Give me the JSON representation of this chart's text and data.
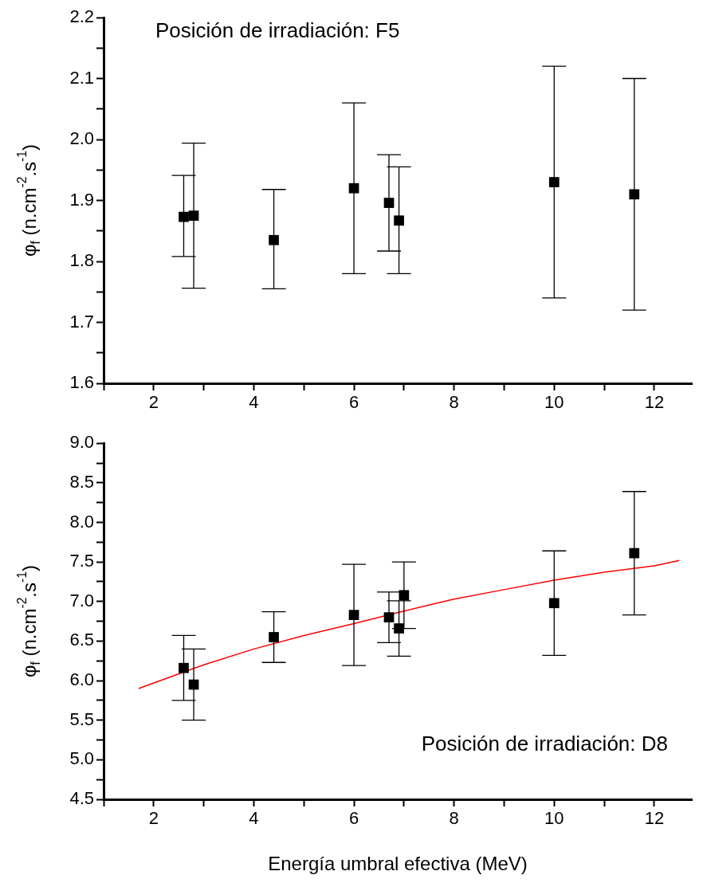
{
  "chart_data": [
    {
      "type": "scatter",
      "ylabel": "φ$_{f}$ (n.cm$^{-2}$.s$^{-1}$)",
      "annotations": [
        "Posición de irradiación: F5"
      ],
      "xlim": [
        1,
        12.75
      ],
      "xticks": [
        {
          "value": 1,
          "label": null
        },
        2,
        {
          "value": 3,
          "label": null
        },
        4,
        {
          "value": 5,
          "label": null
        },
        6,
        {
          "value": 7,
          "label": null
        },
        8,
        {
          "value": 9,
          "label": null
        },
        10,
        {
          "value": 11,
          "label": null
        },
        12
      ],
      "ylim": [
        1.6,
        2.2
      ],
      "yticks": [
        1.6,
        {
          "value": 1.65,
          "label": null
        },
        1.7,
        {
          "value": 1.75,
          "label": null
        },
        1.8,
        {
          "value": 1.85,
          "label": null
        },
        1.9,
        {
          "value": 1.95,
          "label": null
        },
        {
          "value": 2.0,
          "label": "2.0"
        },
        {
          "value": 2.05,
          "label": null
        },
        2.1,
        {
          "value": 2.15,
          "label": null
        },
        2.2
      ],
      "grid": false,
      "legend": false,
      "marker": "square",
      "series": [
        {
          "color": "#000000",
          "x": [
            2.6,
            2.8,
            4.4,
            6.0,
            6.7,
            6.9,
            10.0,
            11.6
          ],
          "values": [
            1.873,
            1.875,
            1.835,
            1.92,
            1.896,
            1.867,
            1.93,
            1.91
          ],
          "errors": [
            [
              1.808,
              1.941
            ],
            [
              1.756,
              1.994
            ],
            [
              1.755,
              1.918
            ],
            [
              1.78,
              2.06
            ],
            [
              1.817,
              1.975
            ],
            [
              1.78,
              1.955
            ],
            [
              1.74,
              2.12
            ],
            [
              1.72,
              2.1
            ]
          ]
        }
      ]
    },
    {
      "type": "scatter",
      "xlabel": "Energía umbral efectiva (MeV)",
      "ylabel": "φ$_{f}$ (n.cm$^{-2}$.s$^{-1}$)",
      "annotations": [
        "Posición de irradiación: D8"
      ],
      "xlim": [
        1,
        12.75
      ],
      "xticks": [
        {
          "value": 1,
          "label": null
        },
        2,
        {
          "value": 3,
          "label": null
        },
        4,
        {
          "value": 5,
          "label": null
        },
        6,
        {
          "value": 7,
          "label": null
        },
        8,
        {
          "value": 9,
          "label": null
        },
        10,
        {
          "value": 11,
          "label": null
        },
        12
      ],
      "ylim": [
        4.5,
        9.0
      ],
      "yticks": [
        4.5,
        {
          "value": 4.75,
          "label": null
        },
        {
          "value": 5.0,
          "label": "5.0"
        },
        {
          "value": 5.25,
          "label": null
        },
        5.5,
        {
          "value": 5.75,
          "label": null
        },
        {
          "value": 6.0,
          "label": "6.0"
        },
        {
          "value": 6.25,
          "label": null
        },
        6.5,
        {
          "value": 6.75,
          "label": null
        },
        {
          "value": 7.0,
          "label": "7.0"
        },
        {
          "value": 7.25,
          "label": null
        },
        7.5,
        {
          "value": 7.75,
          "label": null
        },
        {
          "value": 8.0,
          "label": "8.0"
        },
        {
          "value": 8.25,
          "label": null
        },
        8.5,
        {
          "value": 8.75,
          "label": null
        },
        {
          "value": 9.0,
          "label": "9.0"
        }
      ],
      "grid": false,
      "legend": false,
      "marker": "square",
      "series": [
        {
          "color": "#000000",
          "x": [
            2.6,
            2.8,
            4.4,
            6.0,
            6.7,
            6.9,
            7.0,
            10.0,
            11.6
          ],
          "values": [
            6.16,
            5.95,
            6.55,
            6.83,
            6.8,
            6.66,
            7.08,
            6.98,
            7.61
          ],
          "errors": [
            [
              5.75,
              6.57
            ],
            [
              5.5,
              6.4
            ],
            [
              6.23,
              6.87
            ],
            [
              6.19,
              7.47
            ],
            [
              6.48,
              7.12
            ],
            [
              6.31,
              7.01
            ],
            [
              6.66,
              7.5
            ],
            [
              6.32,
              7.64
            ],
            [
              6.83,
              8.39
            ]
          ]
        },
        {
          "type": "line",
          "color": "#ff0000",
          "marker": "none",
          "x": [
            1.7,
            2,
            3,
            4,
            5,
            6,
            7,
            8,
            9,
            10,
            11,
            12,
            12.5
          ],
          "values": [
            5.9,
            5.97,
            6.2,
            6.4,
            6.57,
            6.72,
            6.88,
            7.03,
            7.15,
            7.27,
            7.37,
            7.45,
            7.52
          ]
        }
      ]
    }
  ]
}
